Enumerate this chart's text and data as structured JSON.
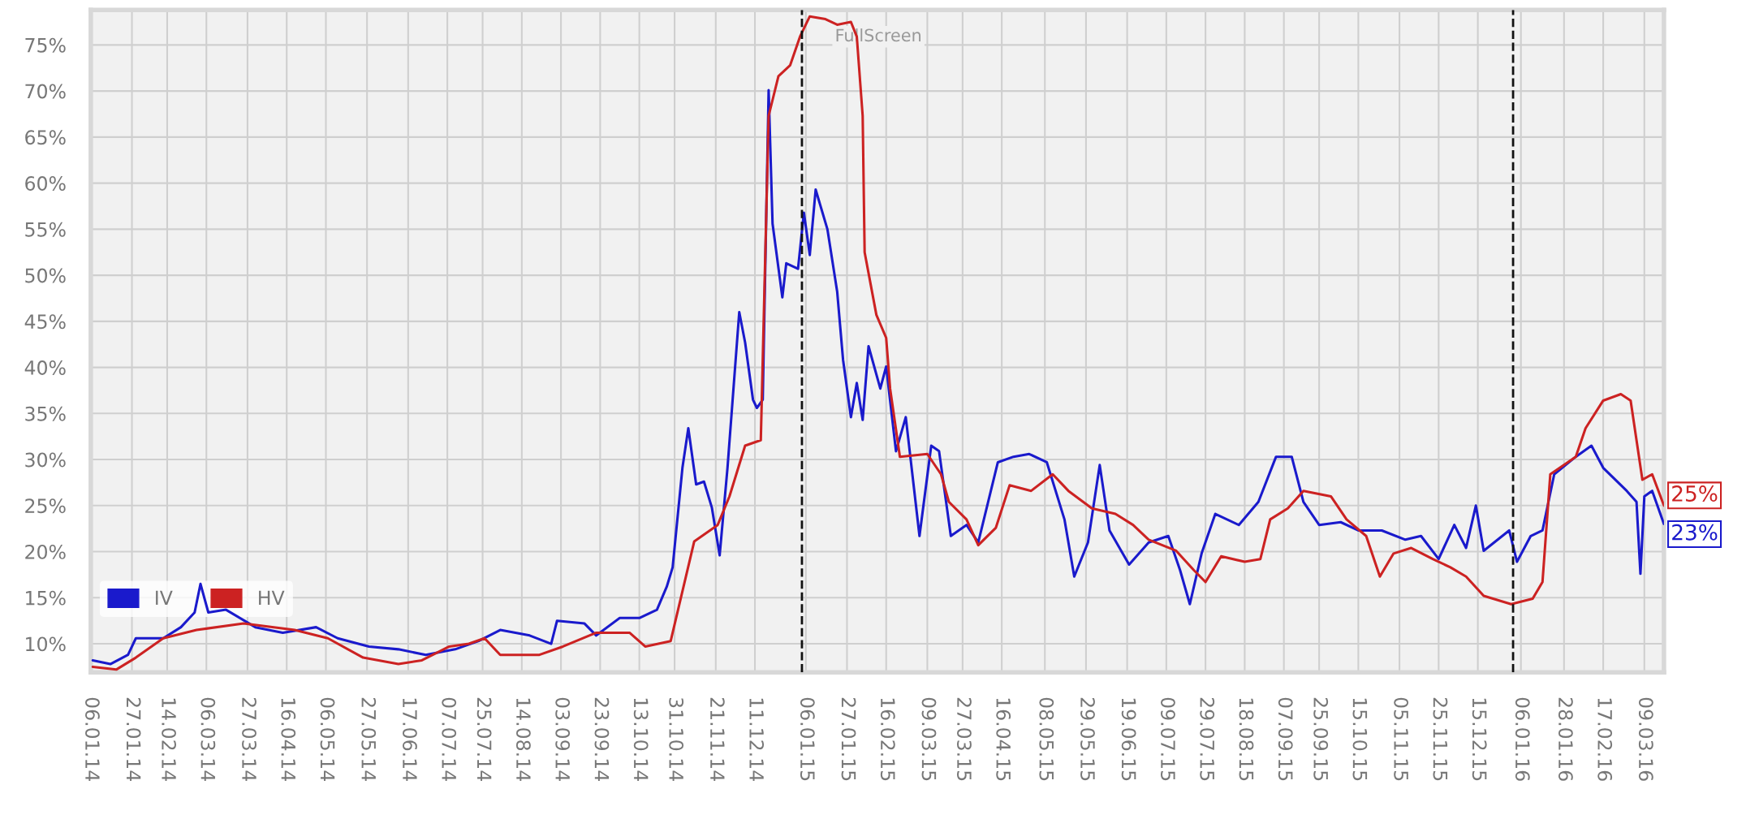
{
  "chart_data": {
    "type": "line",
    "xlim": [
      "2014-01-06",
      "2016-03-19"
    ],
    "ylim": [
      6.9,
      78.8
    ],
    "xticks": [
      {
        "value": "2014-01-06",
        "label": "06.01.14"
      },
      {
        "value": "2014-01-27",
        "label": "27.01.14"
      },
      {
        "value": "2014-02-14",
        "label": "14.02.14"
      },
      {
        "value": "2014-03-06",
        "label": "06.03.14"
      },
      {
        "value": "2014-03-27",
        "label": "27.03.14"
      },
      {
        "value": "2014-04-16",
        "label": "16.04.14"
      },
      {
        "value": "2014-05-06",
        "label": "06.05.14"
      },
      {
        "value": "2014-05-27",
        "label": "27.05.14"
      },
      {
        "value": "2014-06-17",
        "label": "17.06.14"
      },
      {
        "value": "2014-07-07",
        "label": "07.07.14"
      },
      {
        "value": "2014-07-25",
        "label": "25.07.14"
      },
      {
        "value": "2014-08-14",
        "label": "14.08.14"
      },
      {
        "value": "2014-09-03",
        "label": "03.09.14"
      },
      {
        "value": "2014-09-23",
        "label": "23.09.14"
      },
      {
        "value": "2014-10-13",
        "label": "13.10.14"
      },
      {
        "value": "2014-10-31",
        "label": "31.10.14"
      },
      {
        "value": "2014-11-21",
        "label": "21.11.14"
      },
      {
        "value": "2014-12-11",
        "label": "11.12.14"
      },
      {
        "value": "2015-01-06",
        "label": "06.01.15"
      },
      {
        "value": "2015-01-27",
        "label": "27.01.15"
      },
      {
        "value": "2015-02-16",
        "label": "16.02.15"
      },
      {
        "value": "2015-03-09",
        "label": "09.03.15"
      },
      {
        "value": "2015-03-27",
        "label": "27.03.15"
      },
      {
        "value": "2015-04-16",
        "label": "16.04.15"
      },
      {
        "value": "2015-05-08",
        "label": "08.05.15"
      },
      {
        "value": "2015-05-29",
        "label": "29.05.15"
      },
      {
        "value": "2015-06-19",
        "label": "19.06.15"
      },
      {
        "value": "2015-07-09",
        "label": "09.07.15"
      },
      {
        "value": "2015-07-29",
        "label": "29.07.15"
      },
      {
        "value": "2015-08-18",
        "label": "18.08.15"
      },
      {
        "value": "2015-09-07",
        "label": "07.09.15"
      },
      {
        "value": "2015-09-25",
        "label": "25.09.15"
      },
      {
        "value": "2015-10-15",
        "label": "15.10.15"
      },
      {
        "value": "2015-11-05",
        "label": "05.11.15"
      },
      {
        "value": "2015-11-25",
        "label": "25.11.15"
      },
      {
        "value": "2015-12-15",
        "label": "15.12.15"
      },
      {
        "value": "2016-01-06",
        "label": "06.01.16"
      },
      {
        "value": "2016-01-28",
        "label": "28.01.16"
      },
      {
        "value": "2016-02-17",
        "label": "17.02.16"
      },
      {
        "value": "2016-03-09",
        "label": "09.03.16"
      }
    ],
    "yticks": [
      {
        "value": 10,
        "label": "10%"
      },
      {
        "value": 15,
        "label": "15%"
      },
      {
        "value": 20,
        "label": "20%"
      },
      {
        "value": 25,
        "label": "25%"
      },
      {
        "value": 30,
        "label": "30%"
      },
      {
        "value": 35,
        "label": "35%"
      },
      {
        "value": 40,
        "label": "40%"
      },
      {
        "value": 45,
        "label": "45%"
      },
      {
        "value": 50,
        "label": "50%"
      },
      {
        "value": 55,
        "label": "55%"
      },
      {
        "value": 60,
        "label": "60%"
      },
      {
        "value": 65,
        "label": "65%"
      },
      {
        "value": 70,
        "label": "70%"
      },
      {
        "value": 75,
        "label": "75%"
      }
    ],
    "grid": true,
    "legend": "bottom left",
    "marker": "none",
    "line_style": "solid",
    "series": [
      {
        "name": "IV",
        "color": "#1a1acc",
        "x": [
          "2014-01-07",
          "2014-01-16",
          "2014-01-25",
          "2014-01-29",
          "2014-02-12",
          "2014-02-21",
          "2014-02-28",
          "2014-03-03",
          "2014-03-07",
          "2014-03-16",
          "2014-03-31",
          "2014-04-14",
          "2014-05-01",
          "2014-05-12",
          "2014-05-28",
          "2014-06-12",
          "2014-06-26",
          "2014-07-11",
          "2014-07-23",
          "2014-08-03",
          "2014-08-18",
          "2014-08-29",
          "2014-09-01",
          "2014-09-15",
          "2014-09-21",
          "2014-10-03",
          "2014-10-13",
          "2014-10-22",
          "2014-10-27",
          "2014-10-30",
          "2014-11-04",
          "2014-11-07",
          "2014-11-11",
          "2014-11-15",
          "2014-11-19",
          "2014-11-23",
          "2014-11-27",
          "2014-12-03",
          "2014-12-06",
          "2014-12-10",
          "2014-12-12",
          "2014-12-15",
          "2014-12-18",
          "2014-12-20",
          "2014-12-25",
          "2014-12-27",
          "2015-01-02",
          "2015-01-05",
          "2015-01-08",
          "2015-01-11",
          "2015-01-17",
          "2015-01-22",
          "2015-01-25",
          "2015-01-29",
          "2015-02-01",
          "2015-02-04",
          "2015-02-07",
          "2015-02-13",
          "2015-02-16",
          "2015-02-21",
          "2015-02-26",
          "2015-03-05",
          "2015-03-11",
          "2015-03-15",
          "2015-03-21",
          "2015-03-29",
          "2015-04-04",
          "2015-04-14",
          "2015-04-22",
          "2015-04-30",
          "2015-05-09",
          "2015-05-18",
          "2015-05-23",
          "2015-05-30",
          "2015-06-05",
          "2015-06-10",
          "2015-06-20",
          "2015-06-30",
          "2015-07-10",
          "2015-07-16",
          "2015-07-21",
          "2015-07-27",
          "2015-08-03",
          "2015-08-15",
          "2015-08-25",
          "2015-09-03",
          "2015-09-11",
          "2015-09-17",
          "2015-09-25",
          "2015-10-06",
          "2015-10-15",
          "2015-10-27",
          "2015-11-08",
          "2015-11-16",
          "2015-11-25",
          "2015-12-03",
          "2015-12-09",
          "2015-12-14",
          "2015-12-18",
          "2015-12-31",
          "2016-01-04",
          "2016-01-11",
          "2016-01-17",
          "2016-01-23",
          "2016-02-03",
          "2016-02-11",
          "2016-02-17",
          "2016-02-29",
          "2016-03-05",
          "2016-03-07",
          "2016-03-09",
          "2016-03-13",
          "2016-03-19"
        ],
        "values": [
          8.2,
          7.8,
          8.8,
          10.6,
          10.6,
          11.8,
          13.4,
          16.5,
          13.4,
          13.7,
          11.8,
          11.2,
          11.8,
          10.6,
          9.7,
          9.4,
          8.8,
          9.4,
          10.3,
          11.5,
          10.9,
          10.0,
          12.5,
          12.2,
          10.9,
          12.8,
          12.8,
          13.7,
          16.2,
          18.3,
          29.1,
          33.4,
          27.3,
          27.6,
          24.8,
          19.6,
          29.1,
          46.0,
          42.7,
          36.5,
          35.6,
          36.5,
          70.1,
          55.6,
          47.6,
          51.3,
          50.7,
          56.8,
          52.2,
          59.3,
          55.0,
          48.2,
          40.8,
          34.6,
          38.3,
          34.3,
          42.3,
          37.7,
          40.1,
          30.9,
          34.6,
          21.7,
          31.5,
          30.9,
          21.7,
          22.9,
          21.0,
          29.7,
          30.3,
          30.6,
          29.7,
          23.5,
          17.3,
          21.0,
          29.4,
          22.3,
          18.6,
          21.0,
          21.7,
          18.0,
          14.3,
          19.8,
          24.1,
          22.9,
          25.4,
          30.3,
          30.3,
          25.4,
          22.9,
          23.2,
          22.3,
          22.3,
          21.3,
          21.7,
          19.2,
          22.9,
          20.4,
          25.0,
          20.1,
          22.3,
          18.9,
          21.7,
          22.3,
          28.4,
          30.3,
          31.5,
          29.1,
          26.6,
          25.4,
          17.6,
          26.0,
          26.6,
          23.0
        ]
      },
      {
        "name": "HV",
        "color": "#cc2222",
        "x": [
          "2014-01-07",
          "2014-01-19",
          "2014-01-29",
          "2014-02-12",
          "2014-03-01",
          "2014-03-25",
          "2014-04-20",
          "2014-05-07",
          "2014-05-25",
          "2014-06-12",
          "2014-06-24",
          "2014-07-08",
          "2014-07-18",
          "2014-07-26",
          "2014-08-03",
          "2014-08-23",
          "2014-09-04",
          "2014-09-21",
          "2014-10-08",
          "2014-10-16",
          "2014-10-29",
          "2014-11-10",
          "2014-11-22",
          "2014-11-28",
          "2014-12-06",
          "2014-12-14",
          "2014-12-18",
          "2014-12-23",
          "2014-12-29",
          "2015-01-03",
          "2015-01-08",
          "2015-01-16",
          "2015-01-22",
          "2015-01-29",
          "2015-02-01",
          "2015-02-04",
          "2015-02-05",
          "2015-02-11",
          "2015-02-16",
          "2015-02-18",
          "2015-02-23",
          "2015-03-09",
          "2015-03-16",
          "2015-03-20",
          "2015-03-29",
          "2015-04-04",
          "2015-04-13",
          "2015-04-20",
          "2015-05-01",
          "2015-05-12",
          "2015-05-20",
          "2015-06-01",
          "2015-06-13",
          "2015-06-22",
          "2015-06-30",
          "2015-07-14",
          "2015-07-23",
          "2015-07-29",
          "2015-08-06",
          "2015-08-18",
          "2015-08-26",
          "2015-08-31",
          "2015-09-09",
          "2015-09-17",
          "2015-10-01",
          "2015-10-09",
          "2015-10-19",
          "2015-10-26",
          "2015-11-02",
          "2015-11-11",
          "2015-11-22",
          "2015-12-01",
          "2015-12-09",
          "2015-12-18",
          "2016-01-01",
          "2016-01-12",
          "2016-01-17",
          "2016-01-21",
          "2016-02-03",
          "2016-02-08",
          "2016-02-17",
          "2016-02-26",
          "2016-03-02",
          "2016-03-08",
          "2016-03-13",
          "2016-03-19"
        ],
        "values": [
          7.5,
          7.2,
          8.5,
          10.6,
          11.5,
          12.2,
          11.5,
          10.6,
          8.5,
          7.8,
          8.2,
          9.7,
          10.0,
          10.6,
          8.8,
          8.8,
          9.7,
          11.2,
          11.2,
          9.7,
          10.3,
          21.1,
          22.9,
          26.0,
          31.5,
          32.1,
          67.3,
          71.6,
          72.8,
          75.9,
          78.1,
          77.8,
          77.2,
          77.5,
          75.9,
          67.3,
          52.5,
          45.7,
          43.2,
          37.7,
          30.3,
          30.6,
          28.4,
          25.4,
          23.5,
          20.7,
          22.6,
          27.2,
          26.6,
          28.4,
          26.6,
          24.7,
          24.1,
          22.9,
          21.3,
          20.1,
          18.0,
          16.7,
          19.5,
          18.9,
          19.2,
          23.5,
          24.7,
          26.6,
          26.0,
          23.5,
          21.7,
          17.3,
          19.8,
          20.4,
          19.2,
          18.3,
          17.3,
          15.2,
          14.3,
          14.9,
          16.7,
          28.4,
          30.3,
          33.4,
          36.4,
          37.1,
          36.4,
          27.8,
          28.4,
          25.0
        ]
      }
    ],
    "ref_lines": [
      {
        "axis": "x",
        "value": "2015-01-04",
        "color": "#111111",
        "line_style": "dashed"
      },
      {
        "axis": "x",
        "value": "2016-01-02",
        "color": "#111111",
        "line_style": "dashed"
      }
    ],
    "annotations": [
      {
        "text": "25%",
        "x": "2016-03-19",
        "y": 25
      },
      {
        "text": "23%",
        "x": "2016-03-19",
        "y": 23
      },
      "FullScreen"
    ]
  }
}
